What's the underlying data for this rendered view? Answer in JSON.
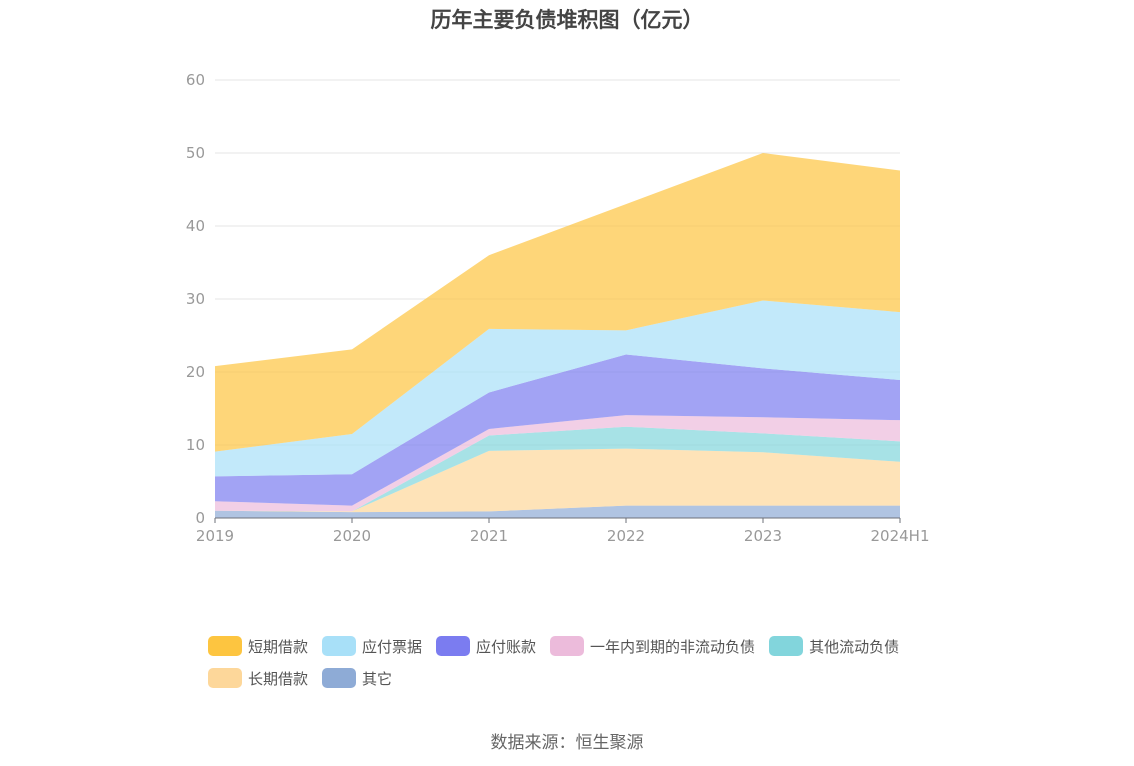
{
  "chart_data": {
    "type": "area",
    "stacked": true,
    "title": "历年主要负债堆积图（亿元）",
    "source": "数据来源：恒生聚源",
    "x": [
      "2019",
      "2020",
      "2021",
      "2022",
      "2023",
      "2024H1"
    ],
    "ylim": [
      0,
      60
    ],
    "yticks": [
      "0",
      "10",
      "20",
      "30",
      "40",
      "50",
      "60"
    ],
    "grid": true,
    "legend_position": "bottom",
    "series": [
      {
        "name": "其它",
        "color": "#8eabd6",
        "values": [
          1.0,
          0.8,
          0.9,
          1.7,
          1.7,
          1.7
        ]
      },
      {
        "name": "长期借款",
        "color": "#fdd79a",
        "values": [
          0.0,
          0.1,
          8.3,
          7.8,
          7.3,
          6.0
        ]
      },
      {
        "name": "其他流动负债",
        "color": "#82d5dc",
        "values": [
          0.0,
          0.0,
          2.1,
          3.0,
          2.6,
          2.8
        ]
      },
      {
        "name": "一年内到期的非流动负债",
        "color": "#ecbbdb",
        "values": [
          1.3,
          0.8,
          0.9,
          1.6,
          2.2,
          2.9
        ]
      },
      {
        "name": "应付账款",
        "color": "#7b7cf0",
        "values": [
          3.4,
          4.3,
          5.0,
          8.3,
          6.7,
          5.5
        ]
      },
      {
        "name": "应付票据",
        "color": "#a8e0f8",
        "values": [
          3.4,
          5.5,
          8.7,
          3.3,
          9.3,
          9.3
        ]
      },
      {
        "name": "短期借款",
        "color": "#fdc540",
        "values": [
          11.7,
          11.6,
          10.1,
          17.3,
          20.2,
          19.4
        ]
      }
    ]
  },
  "legend_rows": [
    [
      {
        "label": "短期借款",
        "color": "#fdc540"
      },
      {
        "label": "应付票据",
        "color": "#a8e0f8"
      },
      {
        "label": "应付账款",
        "color": "#7b7cf0"
      },
      {
        "label": "一年内到期的非流动负债",
        "color": "#ecbbdb"
      },
      {
        "label": "其他流动负债",
        "color": "#82d5dc"
      }
    ],
    [
      {
        "label": "长期借款",
        "color": "#fdd79a"
      },
      {
        "label": "其它",
        "color": "#8eabd6"
      }
    ]
  ]
}
